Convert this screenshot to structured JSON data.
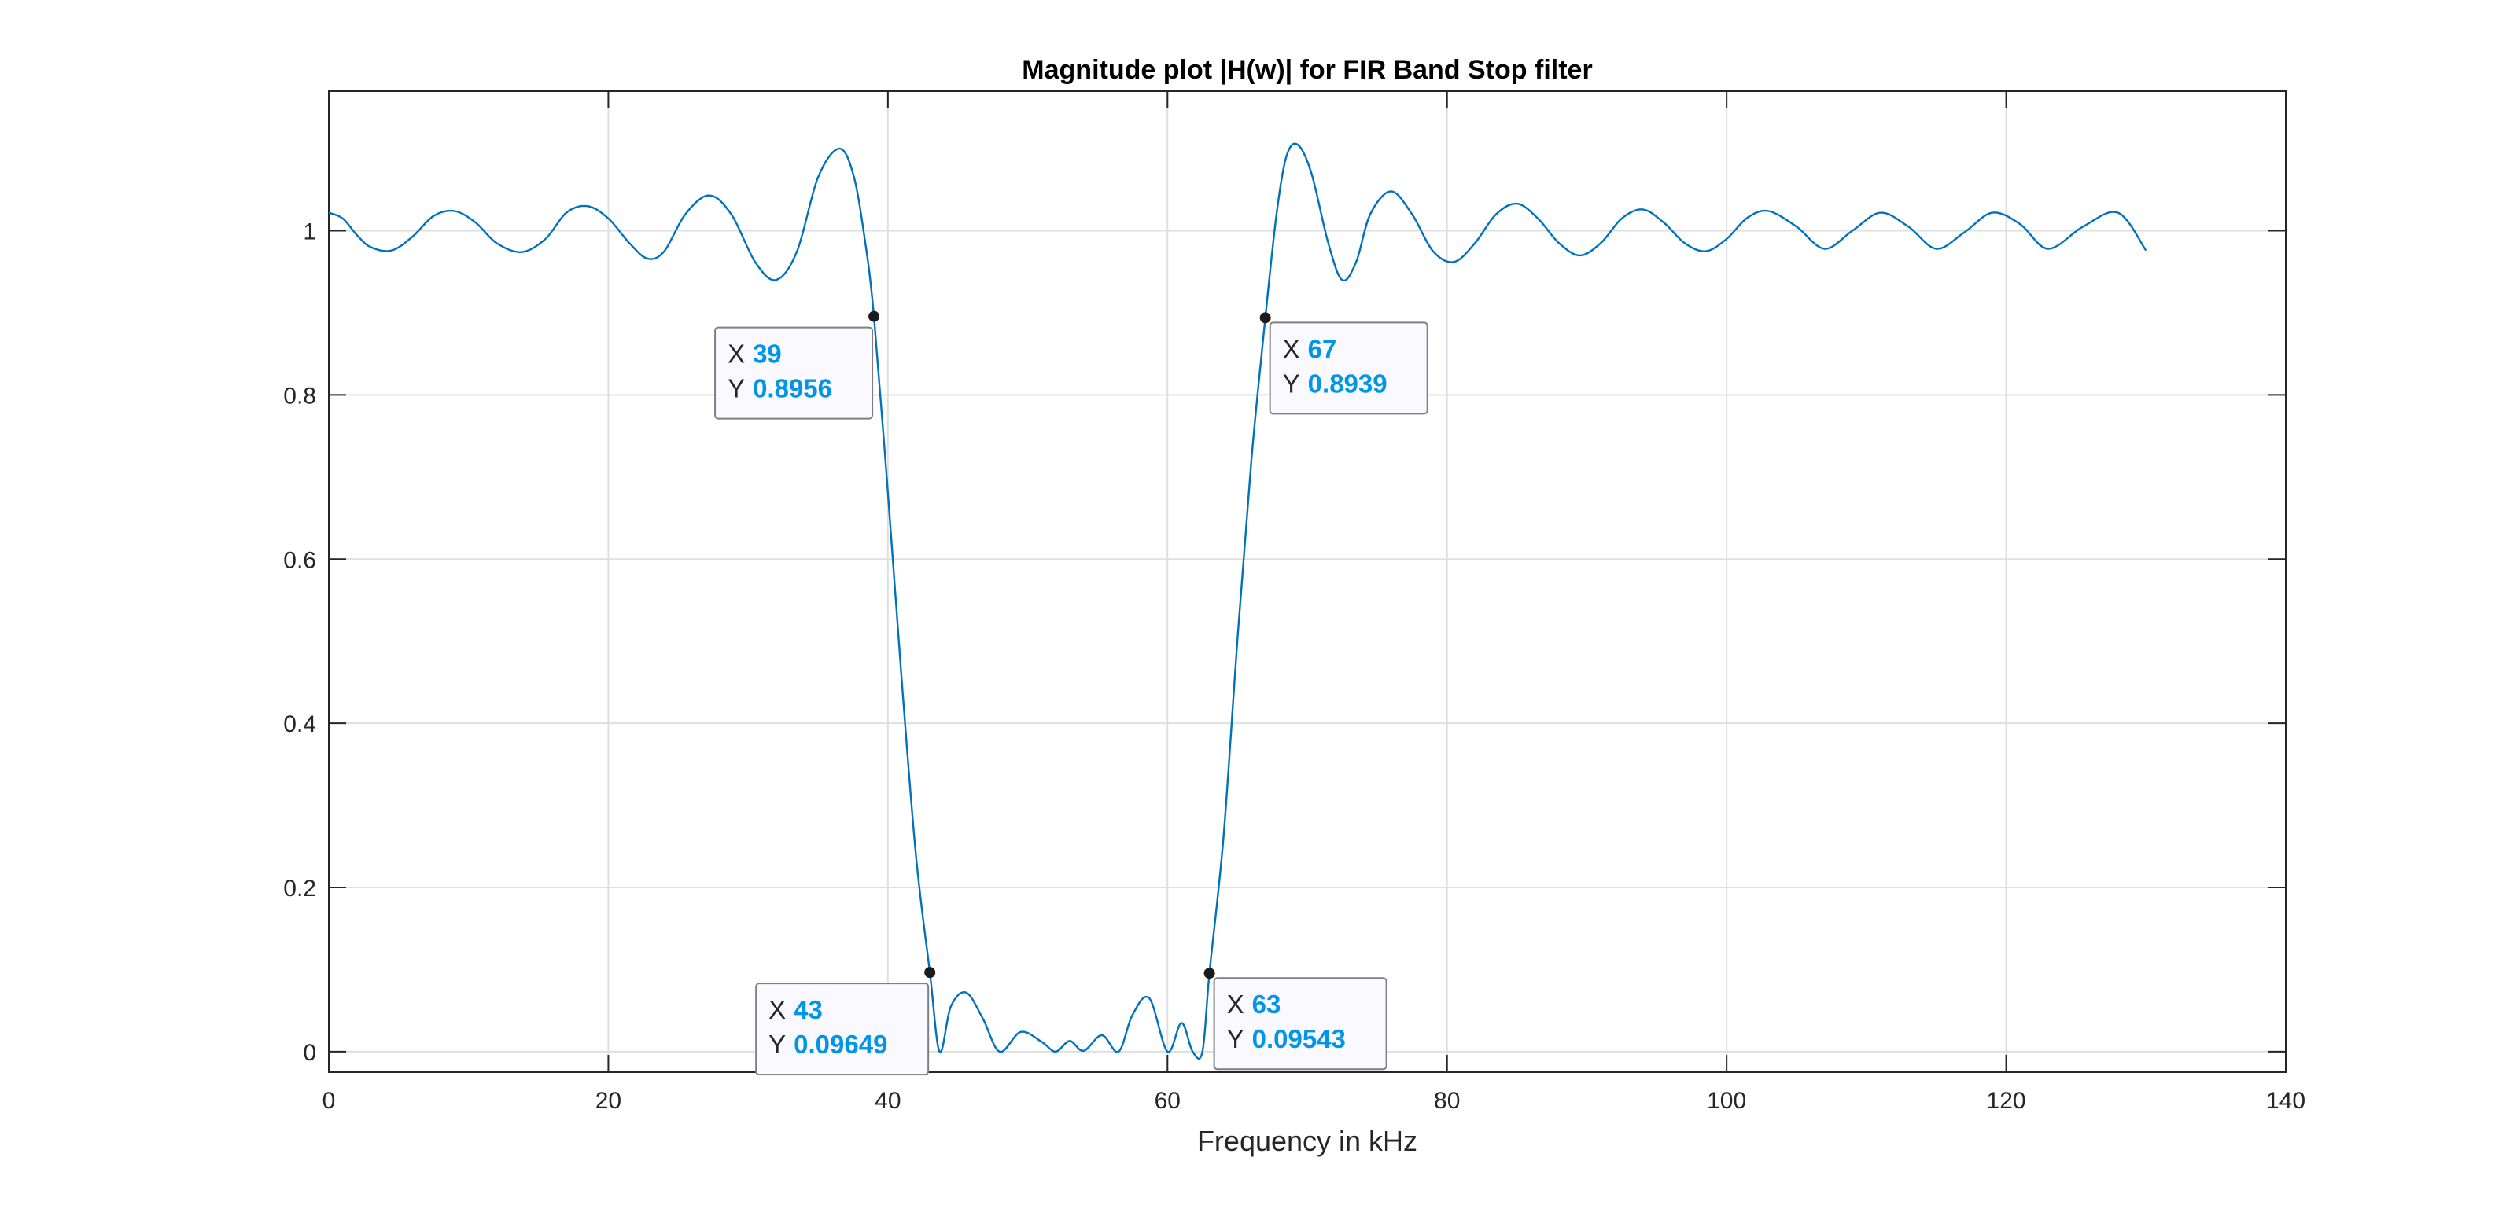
{
  "colors": {
    "line": "#0072BD",
    "datatip_value": "#0095E6",
    "grid": "#dfdfdf",
    "axes": "#262626",
    "datatip_border": "#7f7f7f",
    "datatip_bg": "#f9f9ff",
    "marker": "#1a1a1a"
  },
  "chart_data": {
    "type": "line",
    "title": "Magnitude plot |H(w)| for FIR Band Stop filter",
    "xlabel": "Frequency in kHz",
    "ylabel": "",
    "xlim": [
      0,
      140
    ],
    "ylim": [
      -0.025,
      1.17
    ],
    "xticks": [
      0,
      20,
      40,
      60,
      80,
      100,
      120,
      140
    ],
    "xtick_labels": [
      "0",
      "20",
      "40",
      "60",
      "80",
      "100",
      "120",
      "140"
    ],
    "yticks": [
      0,
      0.2,
      0.4,
      0.6,
      0.8,
      1
    ],
    "ytick_labels": [
      "0",
      "0.2",
      "0.4",
      "0.6",
      "0.8",
      "1"
    ],
    "grid": true,
    "box": true,
    "series": [
      {
        "x": [
          0,
          1,
          2,
          3,
          4.5,
          6,
          7.5,
          9,
          10.5,
          12,
          13.8,
          15.5,
          17,
          18.5,
          20,
          21.5,
          22.8,
          24,
          25.5,
          27.2,
          28.8,
          30.5,
          32,
          33.5,
          35,
          36.5,
          37.5,
          38.3,
          39,
          40,
          41,
          42,
          43,
          43.7,
          44.5,
          45.6,
          46.8,
          48,
          49.5,
          51,
          52,
          53,
          54,
          55.3,
          56.5,
          57.5,
          58.7,
          60,
          61,
          61.8,
          62.5,
          63,
          64,
          65,
          66,
          67,
          67.8,
          68.5,
          69.3,
          70.3,
          71.5,
          72.5,
          73.5,
          74.5,
          76,
          77.5,
          79,
          80.5,
          82,
          83.5,
          85,
          86.5,
          88,
          89.5,
          91,
          92.5,
          94,
          95.5,
          97,
          98.5,
          100,
          101.5,
          103,
          105,
          107,
          109,
          111,
          113,
          115,
          117,
          119,
          121,
          123,
          125.5,
          128,
          130
        ],
        "y": [
          1.022,
          1.015,
          0.995,
          0.98,
          0.976,
          0.993,
          1.018,
          1.024,
          1.01,
          0.985,
          0.974,
          0.99,
          1.022,
          1.03,
          1.015,
          0.985,
          0.966,
          0.975,
          1.02,
          1.043,
          1.02,
          0.962,
          0.94,
          0.975,
          1.065,
          1.1,
          1.07,
          0.995,
          0.8956,
          0.68,
          0.45,
          0.24,
          0.09649,
          0.0,
          0.055,
          0.072,
          0.04,
          0.0,
          0.024,
          0.012,
          0.0,
          0.013,
          0.001,
          0.02,
          0.0,
          0.045,
          0.065,
          0.0,
          0.035,
          0.0,
          0.0,
          0.09543,
          0.26,
          0.5,
          0.72,
          0.8939,
          1.02,
          1.09,
          1.105,
          1.07,
          0.985,
          0.94,
          0.962,
          1.02,
          1.048,
          1.02,
          0.975,
          0.962,
          0.985,
          1.02,
          1.033,
          1.015,
          0.985,
          0.97,
          0.985,
          1.015,
          1.026,
          1.01,
          0.985,
          0.975,
          0.99,
          1.016,
          1.024,
          1.005,
          0.978,
          1.0,
          1.022,
          1.005,
          0.978,
          0.998,
          1.022,
          1.008,
          0.978,
          1.005,
          1.022,
          0.976
        ]
      }
    ],
    "datatips": [
      {
        "x": 39,
        "y": 0.8956,
        "x_label": "X",
        "y_label": "Y",
        "x_text": "39",
        "y_text": "0.8956",
        "placement": "below-left"
      },
      {
        "x": 67,
        "y": 0.8939,
        "x_label": "X",
        "y_label": "Y",
        "x_text": "67",
        "y_text": "0.8939",
        "placement": "below-right"
      },
      {
        "x": 43,
        "y": 0.09649,
        "x_label": "X",
        "y_label": "Y",
        "x_text": "43",
        "y_text": "0.09649",
        "placement": "below-left"
      },
      {
        "x": 63,
        "y": 0.09543,
        "x_label": "X",
        "y_label": "Y",
        "x_text": "63",
        "y_text": "0.09543",
        "placement": "below-right"
      }
    ]
  }
}
